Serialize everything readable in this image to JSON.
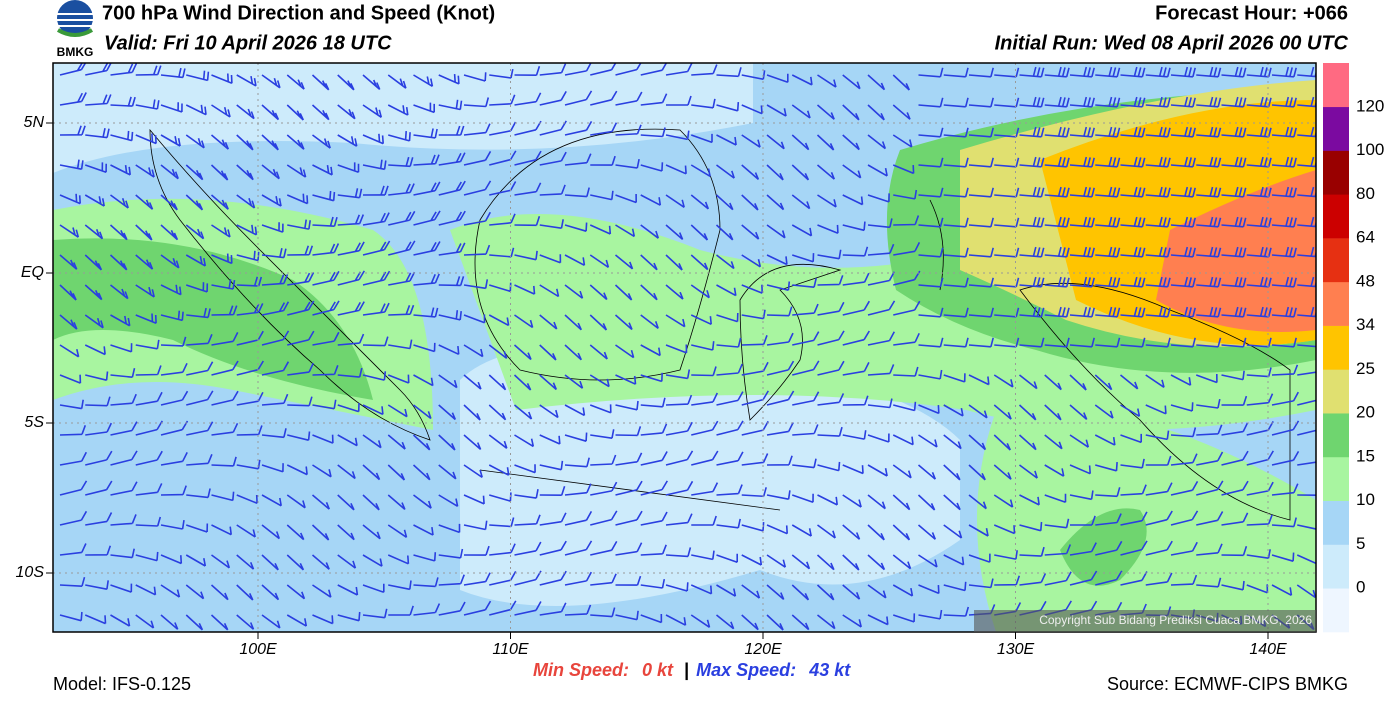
{
  "header": {
    "title": "700 hPa Wind Direction and Speed (Knot)",
    "valid": "Valid: Fri 10 April 2026 18 UTC",
    "forecast_hour": "Forecast Hour: +066",
    "initial_run": "Initial Run: Wed 08 April 2026 00 UTC",
    "logo": "BMKG"
  },
  "map": {
    "lat_labels": [
      "5N",
      "EQ",
      "5S",
      "10S"
    ],
    "lon_labels": [
      "100E",
      "110E",
      "120E",
      "130E",
      "140E"
    ],
    "copyright": "Copyright Sub Bidang Prediksi Cuaca BMKG, 2026"
  },
  "colorbar": {
    "labels": [
      "0",
      "5",
      "10",
      "15",
      "20",
      "25",
      "34",
      "48",
      "64",
      "80",
      "100",
      "120"
    ],
    "colors": [
      "#eef6ff",
      "#cdebfb",
      "#a6d6f6",
      "#a8f5a0",
      "#6fd56f",
      "#e0e070",
      "#ffc400",
      "#ff7f50",
      "#e63012",
      "#cc0000",
      "#990000",
      "#7b0aa0",
      "#ff6a82"
    ]
  },
  "footer": {
    "min_label": "Min Speed:",
    "min_value": "0 kt",
    "separator": "|",
    "max_label": "Max Speed:",
    "max_value": "43 kt",
    "model": "Model: IFS-0.125",
    "source": "Source: ECMWF-CIPS BMKG"
  }
}
